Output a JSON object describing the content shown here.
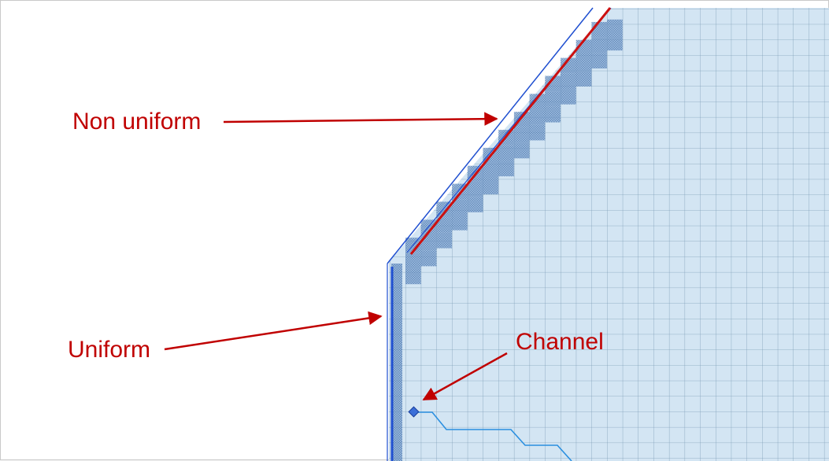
{
  "annotations": {
    "non_uniform": "Non uniform",
    "uniform": "Uniform",
    "channel": "Channel"
  },
  "colors": {
    "annotation": "#c00000",
    "grid_fill": "#d3e5f3",
    "grid_line": "#7f9fb8",
    "boundary": "#1f4fd0",
    "boundary_cells": "#5b86bb",
    "channel": "#2a8fe0"
  },
  "icons": {
    "channel_node": "diamond-node-icon"
  }
}
